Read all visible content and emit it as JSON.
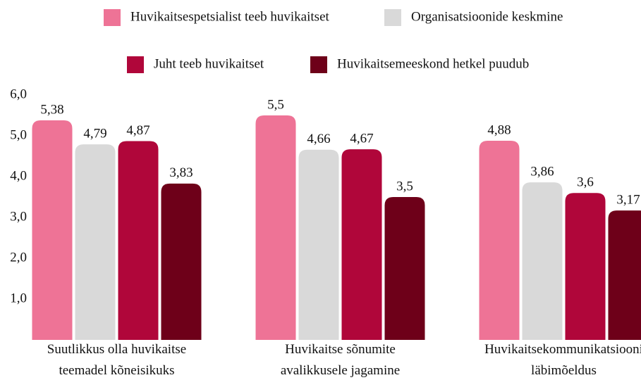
{
  "chart_data": {
    "type": "bar",
    "categories": [
      "Suutlikkus olla huvikaitse\nteemadel kõneisikuks",
      "Huvikaitse sõnumite\navalikkusele jagamine",
      "Huvikaitsekommunikatsiooni\nläbimõeldus"
    ],
    "series": [
      {
        "name": "Huvikaitsespetsialist teeb huvikaitset",
        "color": "#ee7396",
        "values": [
          5.38,
          5.5,
          4.88
        ],
        "value_labels": [
          "5,38",
          "5,5",
          "4,88"
        ]
      },
      {
        "name": "Organisatsioonide keskmine",
        "color": "#d9d9d9",
        "values": [
          4.79,
          4.66,
          3.86
        ],
        "value_labels": [
          "4,79",
          "4,66",
          "3,86"
        ]
      },
      {
        "name": "Juht teeb huvikaitset",
        "color": "#b0063a",
        "values": [
          4.87,
          4.67,
          3.6
        ],
        "value_labels": [
          "4,87",
          "4,67",
          "3,6"
        ]
      },
      {
        "name": "Huvikaitsemeeskond hetkel puudub",
        "color": "#6e0019",
        "values": [
          3.83,
          3.5,
          3.17
        ],
        "value_labels": [
          "3,83",
          "3,5",
          "3,17"
        ]
      }
    ],
    "ylim": [
      0,
      6
    ],
    "yticks": [
      {
        "value": 1,
        "label": "1,0"
      },
      {
        "value": 2,
        "label": "2,0"
      },
      {
        "value": 3,
        "label": "3,0"
      },
      {
        "value": 4,
        "label": "4,0"
      },
      {
        "value": 5,
        "label": "5,0"
      },
      {
        "value": 6,
        "label": "6,0"
      }
    ],
    "grid": false
  }
}
